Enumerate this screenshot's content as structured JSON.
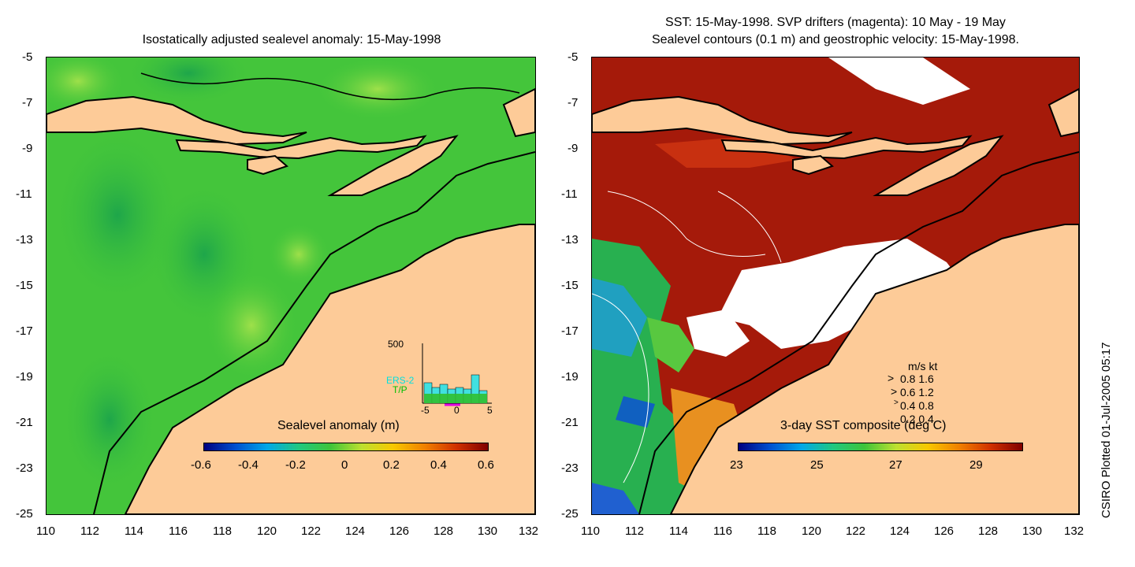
{
  "left_panel": {
    "title": "Isostatically adjusted sealevel anomaly: 15-May-1998",
    "colorbar_label": "Sealevel anomaly (m)",
    "colorbar_ticks": [
      "-0.6",
      "-0.4",
      "-0.2",
      "0",
      "0.2",
      "0.4",
      "0.6"
    ],
    "histogram": {
      "ymax_label": "500",
      "series_labels": [
        "ERS-2",
        "T/P"
      ],
      "x_ticks": [
        "-5",
        "0",
        "5"
      ]
    }
  },
  "right_panel": {
    "title_line1": "SST: 15-May-1998. SVP drifters (magenta): 10 May - 19 May",
    "title_line2": "Sealevel contours (0.1 m) and geostrophic velocity: 15-May-1998.",
    "colorbar_label": "3-day SST composite (deg C)",
    "colorbar_ticks": [
      "23",
      "25",
      "27",
      "29"
    ],
    "velocity_legend": {
      "header": "m/s  kt",
      "rows": [
        "0.8  1.6",
        "0.6  1.2",
        "0.4  0.8",
        "0.2  0.4"
      ]
    }
  },
  "axes": {
    "y_ticks": [
      "-5",
      "-7",
      "-9",
      "-11",
      "-13",
      "-15",
      "-17",
      "-19",
      "-21",
      "-23",
      "-25"
    ],
    "x_ticks": [
      "110",
      "112",
      "114",
      "116",
      "118",
      "120",
      "122",
      "124",
      "126",
      "128",
      "130",
      "132"
    ]
  },
  "side_label": "CSIRO Plotted 01-Jul-2005 05:17",
  "colors": {
    "land": "#fdcb98",
    "ocean_green": "#3ec43a",
    "sst_red": "#a51a0a"
  }
}
